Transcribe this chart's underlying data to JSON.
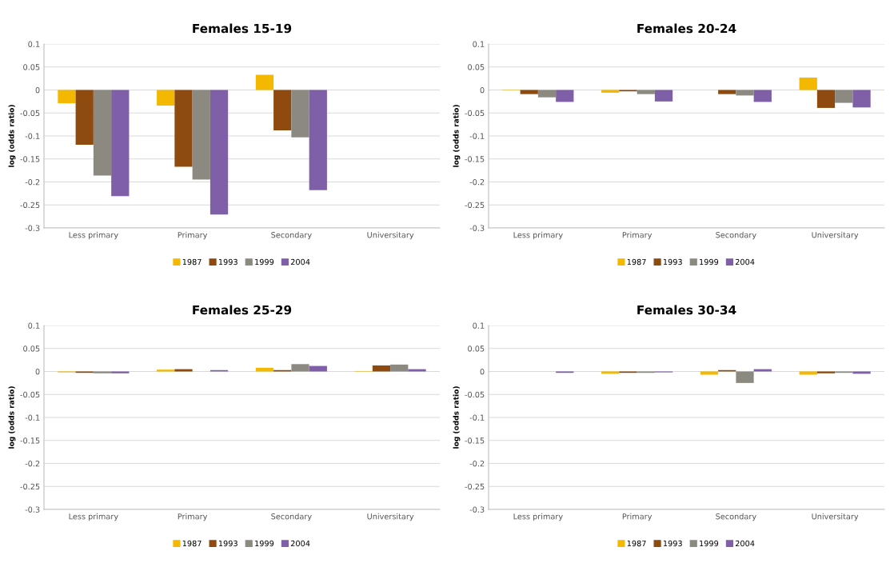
{
  "chart_data": [
    {
      "type": "bar",
      "title": "Females 15-19",
      "ylabel": "log (odds ratio)",
      "categories": [
        "Less primary",
        "Primary",
        "Secondary",
        "Universitary"
      ],
      "ylim": [
        -0.3,
        0.1
      ],
      "yticks": [
        0.1,
        0.05,
        0,
        -0.05,
        -0.1,
        -0.15,
        -0.2,
        -0.25,
        -0.3
      ],
      "grid": "y",
      "legend": "bottom",
      "series": [
        {
          "name": "1987",
          "color": "#f5b800",
          "values": [
            -0.029,
            -0.034,
            0.033,
            null
          ]
        },
        {
          "name": "1993",
          "color": "#8f4a0f",
          "values": [
            -0.119,
            -0.167,
            -0.088,
            null
          ]
        },
        {
          "name": "1999",
          "color": "#8c8a80",
          "values": [
            -0.186,
            -0.195,
            -0.103,
            null
          ]
        },
        {
          "name": "2004",
          "color": "#7f5fa8",
          "values": [
            -0.231,
            -0.271,
            -0.218,
            null
          ]
        }
      ]
    },
    {
      "type": "bar",
      "title": "Females 20-24",
      "ylabel": "log (odds ratio)",
      "categories": [
        "Less primary",
        "Primary",
        "Secondary",
        "Universitary"
      ],
      "ylim": [
        -0.3,
        0.1
      ],
      "yticks": [
        0.1,
        0.05,
        0,
        -0.05,
        -0.1,
        -0.15,
        -0.2,
        -0.25,
        -0.3
      ],
      "grid": "y",
      "legend": "bottom",
      "series": [
        {
          "name": "1987",
          "color": "#f5b800",
          "values": [
            -0.001,
            -0.006,
            0,
            0.027
          ]
        },
        {
          "name": "1993",
          "color": "#8f4a0f",
          "values": [
            -0.009,
            -0.003,
            -0.009,
            -0.039
          ]
        },
        {
          "name": "1999",
          "color": "#8c8a80",
          "values": [
            -0.016,
            -0.009,
            -0.012,
            -0.028
          ]
        },
        {
          "name": "2004",
          "color": "#7f5fa8",
          "values": [
            -0.026,
            -0.025,
            -0.026,
            -0.038
          ]
        }
      ]
    },
    {
      "type": "bar",
      "title": "Females 25-29",
      "ylabel": "log (odds ratio)",
      "categories": [
        "Less primary",
        "Primary",
        "Secondary",
        "Universitary"
      ],
      "ylim": [
        -0.3,
        0.1
      ],
      "yticks": [
        0.1,
        0.05,
        0,
        -0.05,
        -0.1,
        -0.15,
        -0.2,
        -0.25,
        -0.3
      ],
      "grid": "y",
      "legend": "bottom",
      "series": [
        {
          "name": "1987",
          "color": "#f5b800",
          "values": [
            -0.002,
            0.004,
            0.008,
            0.001
          ]
        },
        {
          "name": "1993",
          "color": "#8f4a0f",
          "values": [
            -0.003,
            0.005,
            0.003,
            0.013
          ]
        },
        {
          "name": "1999",
          "color": "#8c8a80",
          "values": [
            -0.004,
            0,
            0.016,
            0.015
          ]
        },
        {
          "name": "2004",
          "color": "#7f5fa8",
          "values": [
            -0.004,
            0.003,
            0.012,
            0.005
          ]
        }
      ]
    },
    {
      "type": "bar",
      "title": "Females 30-34",
      "ylabel": "log (odds ratio)",
      "categories": [
        "Less primary",
        "Primary",
        "Secondary",
        "Universitary"
      ],
      "ylim": [
        -0.3,
        0.1
      ],
      "yticks": [
        0.1,
        0.05,
        0,
        -0.05,
        -0.1,
        -0.15,
        -0.2,
        -0.25,
        -0.3
      ],
      "grid": "y",
      "legend": "bottom",
      "series": [
        {
          "name": "1987",
          "color": "#f5b800",
          "values": [
            null,
            -0.005,
            -0.007,
            -0.007
          ]
        },
        {
          "name": "1993",
          "color": "#8f4a0f",
          "values": [
            null,
            -0.003,
            0.003,
            -0.004
          ]
        },
        {
          "name": "1999",
          "color": "#8c8a80",
          "values": [
            null,
            -0.003,
            -0.025,
            -0.003
          ]
        },
        {
          "name": "2004",
          "color": "#7f5fa8",
          "values": [
            -0.003,
            -0.002,
            0.005,
            -0.005
          ]
        }
      ]
    }
  ]
}
